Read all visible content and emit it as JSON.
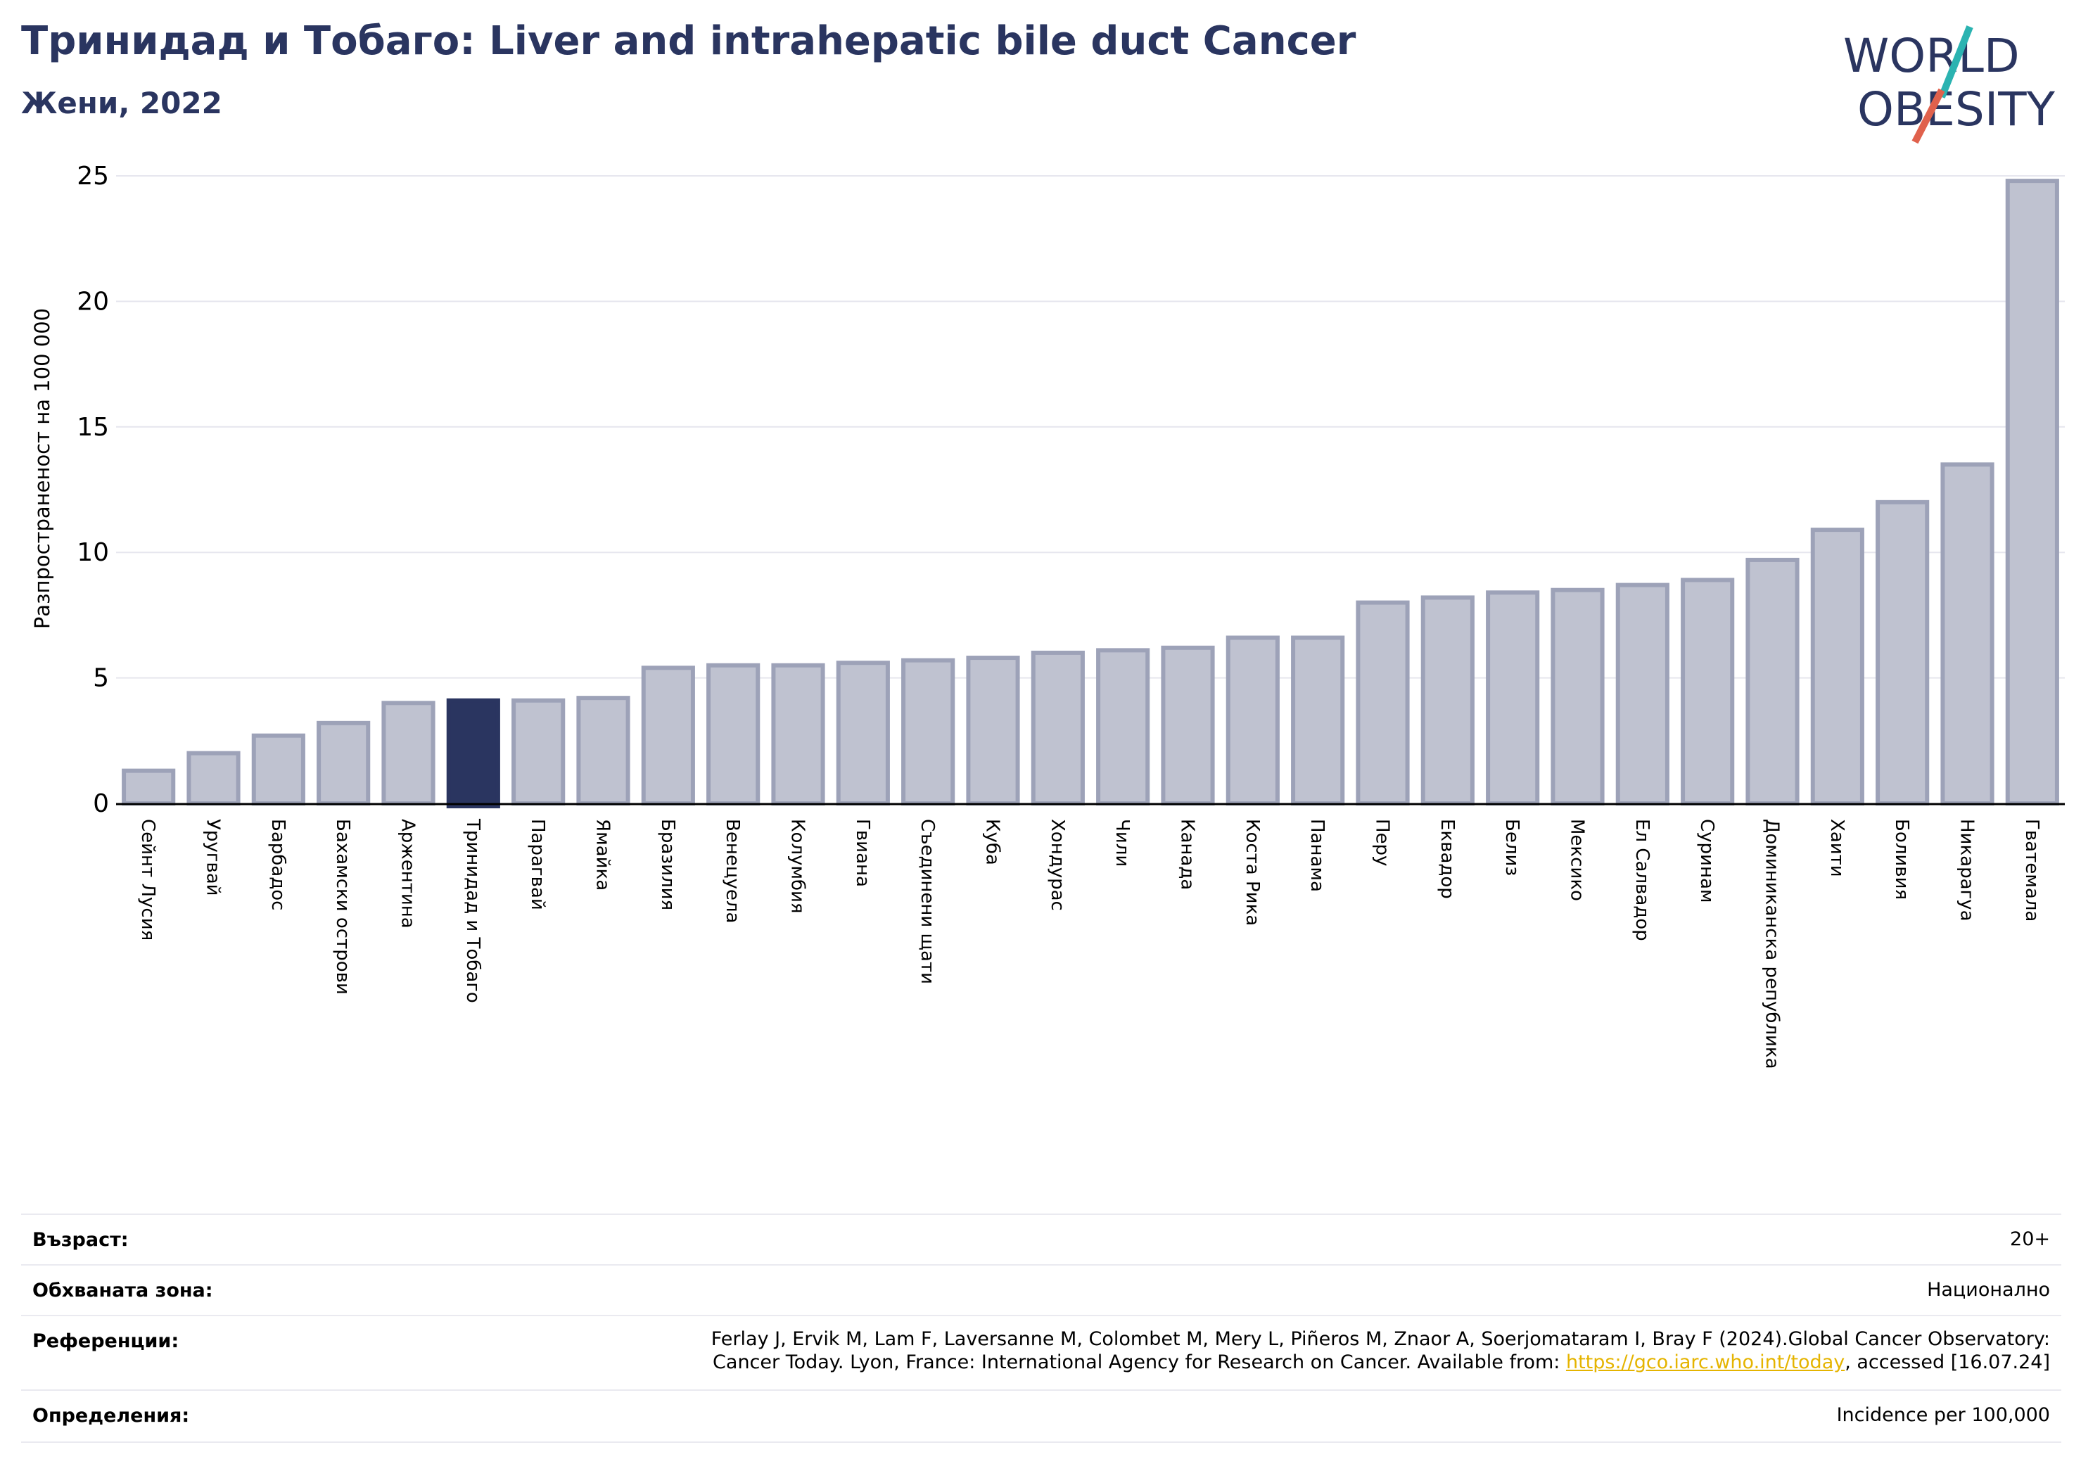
{
  "title": "Тринидад и Тобаго: Liver and intrahepatic bile duct Cancer",
  "subtitle": "Жени, 2022",
  "logo": {
    "line1": "WORLD",
    "line2": "OBESITY",
    "colors": {
      "navy": "#2a3560",
      "teal": "#2bb3b1",
      "coral": "#e0614c"
    }
  },
  "colors": {
    "bar": "#bfc2d0",
    "bar_edge": "#9da2b8",
    "highlight": "#2a3560",
    "grid": "#e6e6ee",
    "axis": "#000000"
  },
  "chart_data": {
    "type": "bar",
    "ylabel": "Разпространеност  на 100 000",
    "ylim": [
      0,
      25
    ],
    "yticks": [
      0,
      5,
      10,
      15,
      20,
      25
    ],
    "grid": true,
    "highlight": "Тринидад и Тобаго",
    "categories": [
      "Сейнт Лусия",
      "Уругвай",
      "Барбадос",
      "Бахамски острови",
      "Аржентина",
      "Тринидад и Тобаго",
      "Парагвай",
      "Ямайка",
      "Бразилия",
      "Венецуела",
      "Колумбия",
      "Гвиана",
      "Съединени щати",
      "Куба",
      "Хондурас",
      "Чили",
      "Канада",
      "Коста Рика",
      "Панама",
      "Перу",
      "Еквадор",
      "Белиз",
      "Мексико",
      "Ел Салвадор",
      "Суринам",
      "Доминиканска република",
      "Хаити",
      "Боливия",
      "Никарагуа",
      "Гватемала"
    ],
    "values": [
      1.3,
      2.0,
      2.7,
      3.2,
      4.0,
      4.1,
      4.1,
      4.2,
      5.4,
      5.5,
      5.5,
      5.6,
      5.7,
      5.8,
      6.0,
      6.1,
      6.2,
      6.6,
      6.6,
      8.0,
      8.2,
      8.4,
      8.5,
      8.7,
      8.9,
      9.7,
      10.9,
      12.0,
      13.5,
      24.8
    ]
  },
  "info": {
    "age_label": "Възраст:",
    "age_value": "20+",
    "area_label": "Обхваната зона:",
    "area_value": "Национално",
    "refs_label": "Референции:",
    "refs_line1": "Ferlay J, Ervik M, Lam F, Laversanne M, Colombet M, Mery L, Piñeros M, Znaor A, Soerjomataram I, Bray F (2024).Global Cancer Observatory:",
    "refs_line2_pre": "Cancer Today. Lyon, France: International Agency for Research on Cancer. Available from: ",
    "refs_link": "https://gco.iarc.who.int/today",
    "refs_line2_post": ", accessed [16.07.24]",
    "defs_label": "Определения:",
    "defs_value": "Incidence per 100,000"
  }
}
